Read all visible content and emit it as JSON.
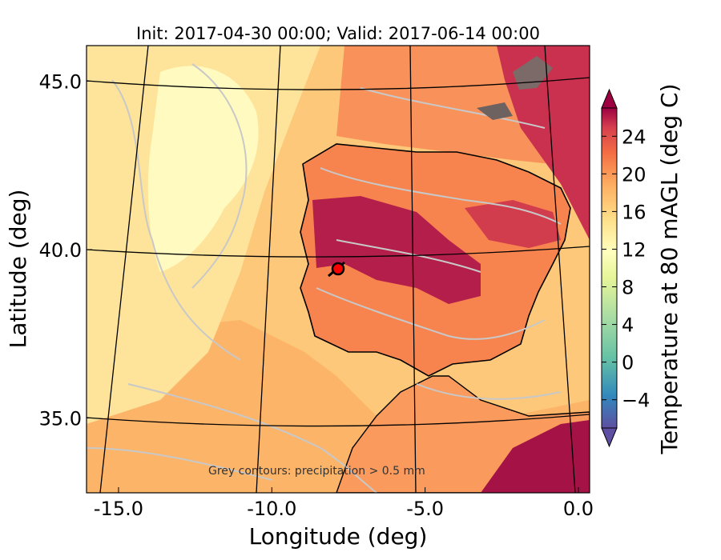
{
  "figure": {
    "title": "Init: 2017-04-30 00:00; Valid: 2017-06-14 00:00",
    "xlabel": "Longitude (deg)",
    "ylabel": "Latitude (deg)",
    "annotation": "Grey contours: precipitation  > 0.5 mm",
    "colorbar_label": "Temperature at 80 mAGL (deg C)"
  },
  "map_data": {
    "type": "filled-contour-map",
    "variable": "temperature at 80 m above ground level",
    "units": "deg C",
    "x_ticks": [
      {
        "value": -15.0,
        "label": "-15.0"
      },
      {
        "value": -10.0,
        "label": "-10.0"
      },
      {
        "value": -5.0,
        "label": "-5.0"
      },
      {
        "value": 0.0,
        "label": "0.0"
      }
    ],
    "y_ticks": [
      {
        "value": 35.0,
        "label": "35.0"
      },
      {
        "value": 40.0,
        "label": "40.0"
      },
      {
        "value": 45.0,
        "label": "45.0"
      }
    ],
    "marker": {
      "lon": -7.7,
      "lat": 39.3,
      "color": "#ff0000"
    },
    "overlay_contours": "precipitation > 0.5 mm (grey)"
  },
  "colorbar": {
    "ticks": [
      {
        "value": -4,
        "label": "−4"
      },
      {
        "value": 0,
        "label": "0"
      },
      {
        "value": 4,
        "label": "4"
      },
      {
        "value": 8,
        "label": "8"
      },
      {
        "value": 12,
        "label": "12"
      },
      {
        "value": 16,
        "label": "16"
      },
      {
        "value": 20,
        "label": "20"
      },
      {
        "value": 24,
        "label": "24"
      }
    ],
    "min": -7,
    "max": 27,
    "colormap": "Spectral_r",
    "extend": "both"
  }
}
